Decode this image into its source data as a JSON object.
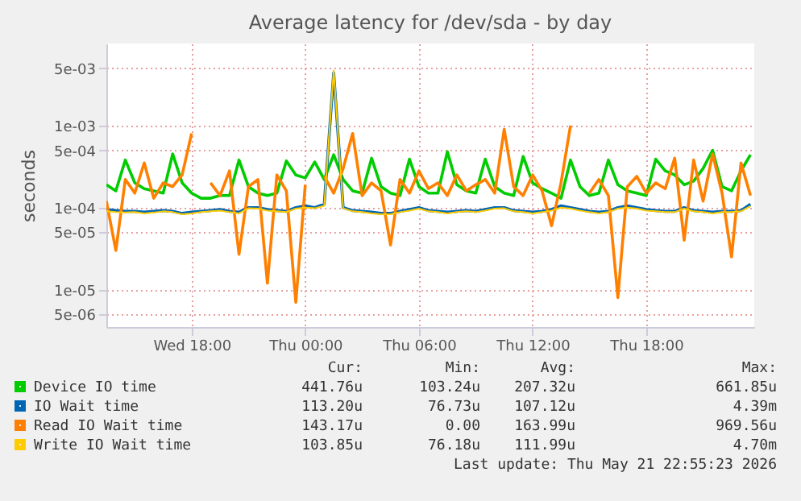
{
  "chart_data": {
    "type": "line",
    "title": "Average latency for /dev/sda - by day",
    "ylabel": "seconds",
    "x": [
      "2026-05-20T13:30",
      "2026-05-20T14:00",
      "2026-05-20T14:30",
      "2026-05-20T15:00",
      "2026-05-20T15:30",
      "2026-05-20T16:00",
      "2026-05-20T16:30",
      "2026-05-20T17:00",
      "2026-05-20T17:30",
      "2026-05-20T18:00",
      "2026-05-20T18:30",
      "2026-05-20T19:00",
      "2026-05-20T19:30",
      "2026-05-20T20:00",
      "2026-05-20T20:30",
      "2026-05-20T21:00",
      "2026-05-20T21:30",
      "2026-05-20T22:00",
      "2026-05-20T22:30",
      "2026-05-20T23:00",
      "2026-05-20T23:30",
      "2026-05-21T00:00",
      "2026-05-21T00:30",
      "2026-05-21T01:00",
      "2026-05-21T01:30",
      "2026-05-21T02:00",
      "2026-05-21T02:30",
      "2026-05-21T03:00",
      "2026-05-21T03:30",
      "2026-05-21T04:00",
      "2026-05-21T04:30",
      "2026-05-21T05:00",
      "2026-05-21T05:30",
      "2026-05-21T06:00",
      "2026-05-21T06:30",
      "2026-05-21T07:00",
      "2026-05-21T07:30",
      "2026-05-21T08:00",
      "2026-05-21T08:30",
      "2026-05-21T09:00",
      "2026-05-21T09:30",
      "2026-05-21T10:00",
      "2026-05-21T10:30",
      "2026-05-21T11:00",
      "2026-05-21T11:30",
      "2026-05-21T12:00",
      "2026-05-21T12:30",
      "2026-05-21T13:00",
      "2026-05-21T13:30",
      "2026-05-21T14:00",
      "2026-05-21T14:30",
      "2026-05-21T15:00",
      "2026-05-21T15:30",
      "2026-05-21T16:00",
      "2026-05-21T16:30",
      "2026-05-21T17:00",
      "2026-05-21T17:30",
      "2026-05-21T18:00",
      "2026-05-21T18:30",
      "2026-05-21T19:00",
      "2026-05-21T19:30",
      "2026-05-21T20:00",
      "2026-05-21T20:30",
      "2026-05-21T21:00",
      "2026-05-21T21:30",
      "2026-05-21T22:00",
      "2026-05-21T22:30",
      "2026-05-21T23:00",
      "2026-05-21T23:30"
    ],
    "series": [
      {
        "name": "Device IO time",
        "color": "#00cc00",
        "values": [
          0.00019,
          0.00016,
          0.00038,
          0.0002,
          0.00017,
          0.00016,
          0.00015,
          0.00045,
          0.0002,
          0.00015,
          0.00013,
          0.00013,
          0.00014,
          0.00014,
          0.00038,
          0.00018,
          0.00015,
          0.00014,
          0.00015,
          0.00037,
          0.00025,
          0.00023,
          0.00036,
          0.00022,
          0.00044,
          0.00022,
          0.00016,
          0.00015,
          0.0004,
          0.00018,
          0.00015,
          0.00014,
          0.00039,
          0.00018,
          0.00015,
          0.00015,
          0.00048,
          0.00019,
          0.00016,
          0.00015,
          0.00039,
          0.00018,
          0.00015,
          0.00014,
          0.00042,
          0.0002,
          0.00017,
          0.00015,
          0.00013,
          0.00038,
          0.00018,
          0.00014,
          0.00015,
          0.00038,
          0.00019,
          0.00016,
          0.00015,
          0.00014,
          0.00039,
          0.00028,
          0.00025,
          0.00019,
          0.00021,
          0.0003,
          0.0005,
          0.00018,
          0.00016,
          0.00028,
          0.00044
        ]
      },
      {
        "name": "IO Wait time",
        "color": "#0066b3",
        "values": [
          9.5e-05,
          9.2e-05,
          9e-05,
          9e-05,
          8.8e-05,
          9e-05,
          9.2e-05,
          9e-05,
          8.5e-05,
          8.8e-05,
          9e-05,
          9.2e-05,
          9.5e-05,
          9e-05,
          8.8e-05,
          0.0001,
          0.0001,
          9.5e-05,
          9.2e-05,
          9e-05,
          0.0001,
          0.000105,
          0.0001,
          0.00011,
          0.0044,
          0.0001,
          9.2e-05,
          9e-05,
          8.8e-05,
          8.5e-05,
          8.5e-05,
          9e-05,
          9.5e-05,
          0.0001,
          9.2e-05,
          9e-05,
          8.8e-05,
          9e-05,
          9.2e-05,
          9e-05,
          9.5e-05,
          0.0001,
          0.0001,
          9.2e-05,
          9e-05,
          8.8e-05,
          9e-05,
          9.5e-05,
          0.000105,
          0.0001,
          9.5e-05,
          9e-05,
          8.8e-05,
          9e-05,
          0.0001,
          0.000105,
          0.0001,
          9.5e-05,
          9.2e-05,
          9e-05,
          9e-05,
          0.0001,
          9.2e-05,
          9e-05,
          8.8e-05,
          9e-05,
          9e-05,
          9.2e-05,
          0.00011
        ]
      },
      {
        "name": "Read IO Wait time",
        "color": "#ff8000",
        "values": [
          0.00012,
          3e-05,
          0.00022,
          0.00015,
          0.00035,
          0.00013,
          0.0002,
          0.00018,
          0.00025,
          0.0008,
          null,
          0.0002,
          0.00014,
          0.00028,
          2.7e-05,
          0.00018,
          0.00022,
          1.2e-05,
          0.00025,
          0.00016,
          7e-06,
          0.00019,
          null,
          0.00024,
          0.00015,
          0.0003,
          0.0008,
          0.00014,
          0.0002,
          0.00016,
          3.5e-05,
          0.00022,
          0.00015,
          0.00028,
          0.00017,
          0.0002,
          0.00014,
          0.00025,
          0.00016,
          0.00019,
          0.00022,
          0.00015,
          0.0009,
          0.00018,
          0.00014,
          0.00025,
          0.00016,
          6e-05,
          0.0002,
          0.001,
          null,
          0.00015,
          0.00022,
          0.00014,
          8e-06,
          0.00018,
          0.00024,
          0.00015,
          0.0002,
          0.00017,
          0.0004,
          4e-05,
          0.00038,
          0.00012,
          0.00045,
          0.00015,
          2.5e-05,
          0.00035,
          0.00014
        ]
      },
      {
        "name": "Write IO Wait time",
        "color": "#ffcc00",
        "values": [
          9e-05,
          8.8e-05,
          8.7e-05,
          8.8e-05,
          8.5e-05,
          8.7e-05,
          9e-05,
          8.8e-05,
          8.3e-05,
          8.5e-05,
          8.8e-05,
          9e-05,
          9.2e-05,
          8.8e-05,
          8.5e-05,
          9.8e-05,
          9.7e-05,
          9.2e-05,
          9e-05,
          8.8e-05,
          9.7e-05,
          0.0001,
          9.8e-05,
          0.000105,
          0.0047,
          9.8e-05,
          9e-05,
          8.8e-05,
          8.5e-05,
          8.3e-05,
          8.3e-05,
          8.8e-05,
          9.2e-05,
          9.7e-05,
          9e-05,
          8.8e-05,
          8.5e-05,
          8.8e-05,
          9e-05,
          8.8e-05,
          9.2e-05,
          9.7e-05,
          9.8e-05,
          9e-05,
          8.8e-05,
          8.5e-05,
          8.8e-05,
          9.2e-05,
          0.0001,
          9.7e-05,
          9.2e-05,
          8.8e-05,
          8.5e-05,
          8.8e-05,
          9.7e-05,
          0.0001,
          9.7e-05,
          9.2e-05,
          9e-05,
          8.8e-05,
          8.8e-05,
          9.7e-05,
          9e-05,
          8.8e-05,
          8.5e-05,
          8.8e-05,
          8.8e-05,
          9e-05,
          0.000104
        ]
      }
    ],
    "xlim": [
      "2026-05-20T13:30",
      "2026-05-21T23:42"
    ],
    "xticks": [
      {
        "value": "2026-05-20T18:00",
        "label": "Wed 18:00"
      },
      {
        "value": "2026-05-21T00:00",
        "label": "Thu 00:00"
      },
      {
        "value": "2026-05-21T06:00",
        "label": "Thu 06:00"
      },
      {
        "value": "2026-05-21T12:00",
        "label": "Thu 12:00"
      },
      {
        "value": "2026-05-21T18:00",
        "label": "Thu 18:00"
      }
    ],
    "log": true,
    "ylim": [
      3.5e-06,
      0.01
    ],
    "yticks": [
      {
        "value": 5e-06,
        "label": "5e-06"
      },
      {
        "value": 1e-05,
        "label": "1e-05"
      },
      {
        "value": 5e-05,
        "label": "5e-05"
      },
      {
        "value": 0.0001,
        "label": "1e-04"
      },
      {
        "value": 0.0005,
        "label": "5e-04"
      },
      {
        "value": 0.001,
        "label": "1e-03"
      },
      {
        "value": 0.005,
        "label": "5e-03"
      }
    ],
    "grid": true,
    "legend": "bottom left",
    "marker": "none",
    "line_style": "solid",
    "annotations": [
      "Cur:",
      "Min:",
      "Avg:",
      "Max:",
      "441.76u",
      "103.24u",
      "207.32u",
      "661.85u",
      "113.20u",
      "76.73u",
      "107.12u",
      "4.39m",
      "143.17u",
      "0.00",
      "163.99u",
      "969.56u",
      "103.85u",
      "76.18u",
      "111.99u",
      "4.70m",
      "Last update: Thu May 21 22:55:23 2026"
    ]
  }
}
